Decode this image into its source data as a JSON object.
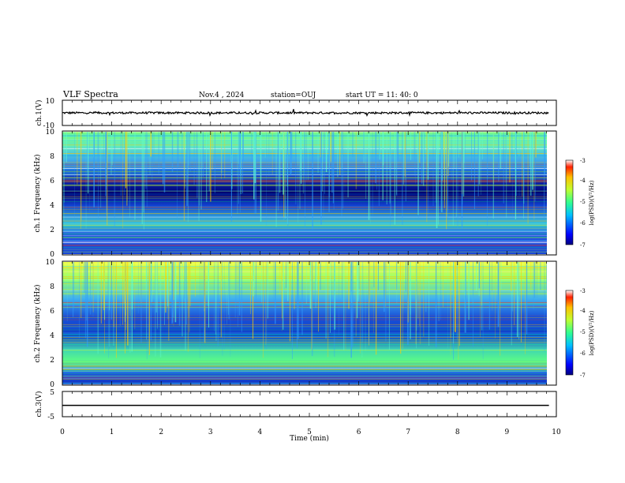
{
  "header": {
    "title": "VLF Spectra",
    "date": "Nov.4 , 2024",
    "station": "station=OUJ",
    "start": "start UT = 11: 40: 0"
  },
  "chart_data": [
    {
      "type": "line",
      "panel": "ch1-waveform",
      "ylabel": "ch.1(V)",
      "ylim": [
        -10,
        10
      ],
      "yticks": [
        "10",
        "-10"
      ],
      "x_range_min": [
        0,
        9.8
      ],
      "description_level": "noisy trace near 0 V"
    },
    {
      "type": "heatmap",
      "panel": "ch1-spectrogram",
      "ylabel": "ch.1 Frequency (kHz)",
      "ylim": [
        0,
        10
      ],
      "yticks": [
        "0",
        "2",
        "4",
        "6",
        "8",
        "10"
      ],
      "colorbar": {
        "label": "log(PSD)(V²/Hz)",
        "range": [
          -7,
          -3
        ],
        "ticks": [
          "-3",
          "-4",
          "-5",
          "-6",
          "-7"
        ]
      }
    },
    {
      "type": "heatmap",
      "panel": "ch2-spectrogram",
      "ylabel": "ch.2 Frequency (kHz)",
      "ylim": [
        0,
        10
      ],
      "yticks": [
        "0",
        "2",
        "4",
        "6",
        "8",
        "10"
      ],
      "colorbar": {
        "label": "log(PSD)(V²/Hz)",
        "range": [
          -7,
          -3
        ],
        "ticks": [
          "-3",
          "-4",
          "-5",
          "-6",
          "-7"
        ]
      }
    },
    {
      "type": "line",
      "panel": "ch3-waveform",
      "ylabel": "ch.3(V)",
      "ylim": [
        -5,
        5
      ],
      "yticks": [
        "5",
        "-5"
      ],
      "level": -0.5
    }
  ],
  "xaxis": {
    "label": "Time (min)",
    "ticks": [
      "0",
      "1",
      "2",
      "3",
      "4",
      "5",
      "6",
      "7",
      "8",
      "9",
      "10"
    ],
    "range": [
      0,
      10
    ],
    "data_end": 9.85
  },
  "colors": {
    "frame": "#000000",
    "bg": "#ffffff"
  }
}
